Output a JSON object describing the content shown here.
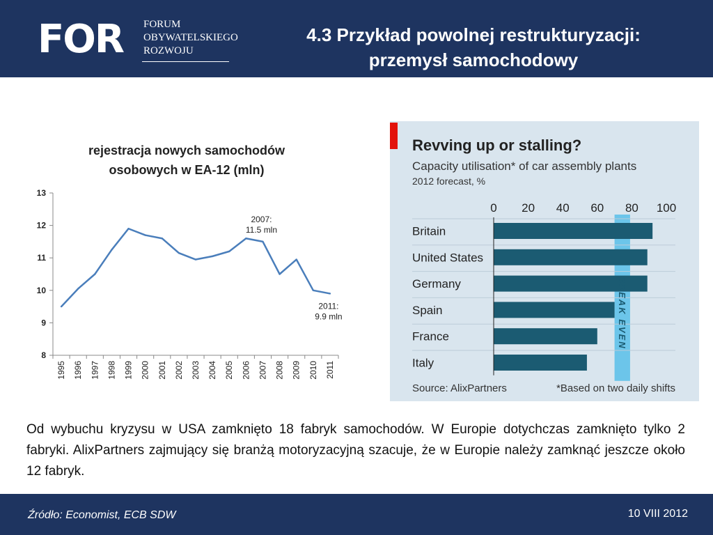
{
  "header": {
    "logo_text": "FOR",
    "logo_sub": [
      "FORUM",
      "OBYWATELSKIEGO",
      "ROZWOJU"
    ],
    "title_line1": "4.3 Przykład powolnej restrukturyzacji:",
    "title_line2": "przemysł samochodowy",
    "bg_color": "#1e3460"
  },
  "paragraph": "Od wybuchu kryzysu w USA zamknięto 18 fabryk samochodów. W Europie dotychczas zamknięto tylko 2 fabryki. AlixPartners zajmujący się branżą motoryzacyjną szacuje, że w Europie należy zamknąć jeszcze około 12 fabryk.",
  "footer": {
    "source": "Źródło: Economist, ECB SDW",
    "date": "10 VIII 2012"
  },
  "chart_data": [
    {
      "type": "line",
      "title_line1": "rejestracja nowych samochodów",
      "title_line2": "osobowych w EA-12 (mln)",
      "x": [
        "1995",
        "1996",
        "1997",
        "1998",
        "1999",
        "2000",
        "2001",
        "2002",
        "2003",
        "2004",
        "2005",
        "2006",
        "2007",
        "2008",
        "2009",
        "2010",
        "2011"
      ],
      "series": [
        {
          "values": [
            9.5,
            10.05,
            10.5,
            11.25,
            11.9,
            11.7,
            11.6,
            11.15,
            10.95,
            11.05,
            11.2,
            11.6,
            11.5,
            10.5,
            10.95,
            10.0,
            9.9
          ],
          "color": "#4a7ebb"
        }
      ],
      "ylim": [
        8,
        13
      ],
      "yticks": [
        "8",
        "9",
        "10",
        "11",
        "12",
        "13"
      ],
      "annotations": [
        {
          "x": "2007",
          "line1": "2007:",
          "line2": "11.5 mln"
        },
        {
          "x": "2011",
          "line1": "2011:",
          "line2": "9.9 mln"
        }
      ]
    },
    {
      "type": "bar",
      "title": "Revving up or stalling?",
      "subtitle": "Capacity utilisation* of car assembly plants",
      "subtitle2": "2012 forecast, %",
      "categories": [
        "Britain",
        "United States",
        "Germany",
        "Spain",
        "France",
        "Italy"
      ],
      "values": [
        92,
        89,
        89,
        70,
        60,
        54
      ],
      "xlim": [
        0,
        100
      ],
      "xticks": [
        "0",
        "20",
        "40",
        "60",
        "80",
        "100"
      ],
      "break_even_label": "BREAK EVEN",
      "break_even_range": [
        70,
        79
      ],
      "source": "Source: AlixPartners",
      "footnote": "*Based on two daily shifts",
      "bar_color": "#1b5b72",
      "band_color": "#6cc5ea",
      "accent_color": "#e3120b"
    }
  ]
}
